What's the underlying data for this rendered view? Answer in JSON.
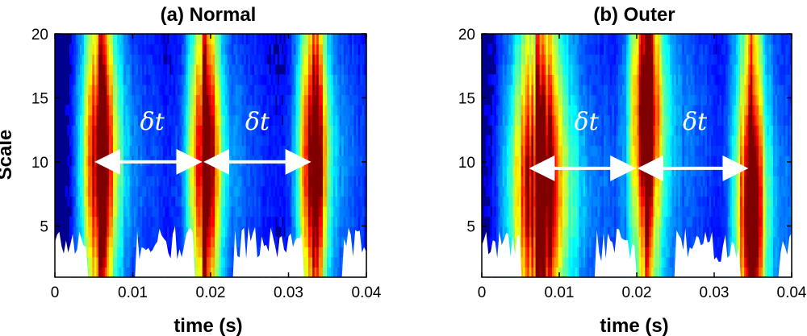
{
  "chart_data": [
    {
      "type": "heatmap",
      "title": "(a) Normal",
      "xlabel": "time (s)",
      "ylabel": "Scale",
      "xlim": [
        0,
        0.04
      ],
      "ylim": [
        1,
        20
      ],
      "xticks": [
        0,
        0.01,
        0.02,
        0.03,
        0.04
      ],
      "xtick_labels": [
        "0",
        "0.01",
        "0.02",
        "0.03",
        "0.04"
      ],
      "yticks": [
        5,
        10,
        15,
        20
      ],
      "ytick_labels": [
        "5",
        "10",
        "15",
        "20"
      ],
      "colormap": "jet",
      "colors": {
        "background": "#00008f",
        "no_data": "#ffffff"
      },
      "impacts": [
        {
          "time": 0.0055,
          "width": 0.0022,
          "peak_scale": 10
        },
        {
          "time": 0.019,
          "width": 0.0018,
          "peak_scale": 10
        },
        {
          "time": 0.033,
          "width": 0.0018,
          "peak_scale": 10
        }
      ],
      "annotations": [
        {
          "text": "δt",
          "x": 0.0125,
          "y": 12.5,
          "from": 0.0055,
          "to": 0.0185,
          "arrow_y": 10
        },
        {
          "text": "δt",
          "x": 0.026,
          "y": 12.5,
          "from": 0.0195,
          "to": 0.0325,
          "arrow_y": 10
        }
      ]
    },
    {
      "type": "heatmap",
      "title": "(b) Outer",
      "xlabel": "time (s)",
      "ylabel": "",
      "xlim": [
        0,
        0.04
      ],
      "ylim": [
        1,
        20
      ],
      "xticks": [
        0,
        0.01,
        0.02,
        0.03,
        0.04
      ],
      "xtick_labels": [
        "0",
        "0.01",
        "0.02",
        "0.03",
        "0.04"
      ],
      "yticks": [
        5,
        10,
        15,
        20
      ],
      "ytick_labels": [
        "5",
        "10",
        "15",
        "20"
      ],
      "colormap": "jet",
      "colors": {
        "background": "#00008f",
        "no_data": "#ffffff"
      },
      "impacts": [
        {
          "time": 0.007,
          "width": 0.0035,
          "peak_scale": 8
        },
        {
          "time": 0.021,
          "width": 0.0018,
          "peak_scale": 14
        },
        {
          "time": 0.0345,
          "width": 0.0018,
          "peak_scale": 6
        }
      ],
      "annotations": [
        {
          "text": "δt",
          "x": 0.0135,
          "y": 12.5,
          "from": 0.0065,
          "to": 0.0195,
          "arrow_y": 9.5
        },
        {
          "text": "δt",
          "x": 0.0275,
          "y": 12.5,
          "from": 0.0205,
          "to": 0.034,
          "arrow_y": 9.5
        }
      ]
    }
  ]
}
